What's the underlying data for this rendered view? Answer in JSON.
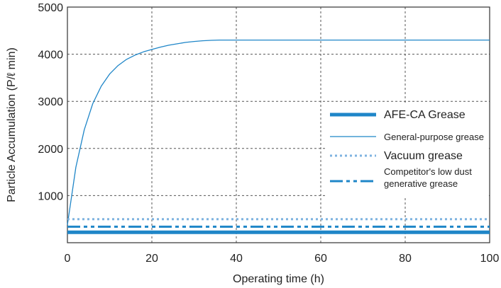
{
  "chart_data": {
    "type": "line",
    "title": "",
    "xlabel": "Operating time (h)",
    "ylabel": "Particle Accumulation (P/ℓ  min)",
    "xlim": [
      0,
      100
    ],
    "ylim": [
      0,
      5000
    ],
    "xticks": [
      0,
      20,
      40,
      60,
      80,
      100
    ],
    "yticks": [
      1000,
      2000,
      3000,
      4000,
      5000
    ],
    "grid": true,
    "legend_position": "right",
    "colors": {
      "primary": "#1f86c8",
      "light": "#7fb3e0",
      "grid": "#555555",
      "axis": "#333333"
    },
    "series": [
      {
        "name": "AFE-CA Grease",
        "style": "solid-thick",
        "x": [
          0,
          100
        ],
        "y": [
          220,
          220
        ]
      },
      {
        "name": "General-purpose grease",
        "style": "solid-thin",
        "x": [
          0,
          2,
          4,
          6,
          8,
          10,
          12,
          14,
          16,
          18,
          20,
          22,
          24,
          26,
          28,
          30,
          32,
          34,
          36,
          38,
          40,
          50,
          60,
          70,
          80,
          90,
          100
        ],
        "y": [
          380,
          1600,
          2400,
          2950,
          3320,
          3580,
          3760,
          3890,
          3980,
          4050,
          4100,
          4150,
          4190,
          4220,
          4250,
          4270,
          4285,
          4295,
          4300,
          4300,
          4300,
          4300,
          4300,
          4300,
          4300,
          4300,
          4300
        ]
      },
      {
        "name": "Vacuum grease",
        "style": "dotted",
        "x": [
          0,
          100
        ],
        "y": [
          500,
          500
        ]
      },
      {
        "name_lines": [
          "Competitor's low dust",
          "generative grease"
        ],
        "style": "dash-dot",
        "x": [
          0,
          100
        ],
        "y": [
          340,
          340
        ]
      }
    ]
  }
}
